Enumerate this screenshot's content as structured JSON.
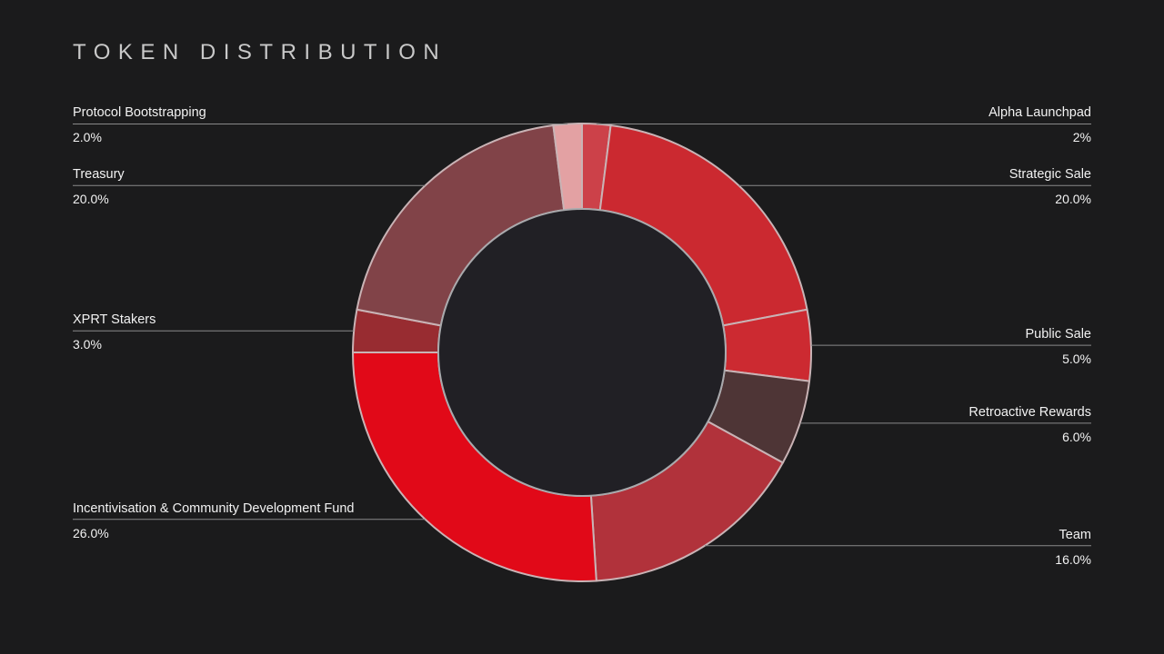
{
  "title": "TOKEN DISTRIBUTION",
  "chart_data": {
    "type": "pie",
    "title": "TOKEN DISTRIBUTION",
    "series": [
      {
        "name": "Alpha Launchpad",
        "value": 2,
        "display": "2%",
        "color": "#cc4149",
        "side": "right"
      },
      {
        "name": "Strategic Sale",
        "value": 20,
        "display": "20.0%",
        "color": "#cb2930",
        "side": "right"
      },
      {
        "name": "Public Sale",
        "value": 5,
        "display": "5.0%",
        "color": "#cc2a31",
        "side": "right"
      },
      {
        "name": "Retroactive Rewards",
        "value": 6,
        "display": "6.0%",
        "color": "#4e3536",
        "side": "right"
      },
      {
        "name": "Team",
        "value": 16,
        "display": "16.0%",
        "color": "#b1323b",
        "side": "right"
      },
      {
        "name": "Incentivisation & Community Development Fund",
        "value": 26,
        "display": "26.0%",
        "color": "#e10918",
        "side": "left"
      },
      {
        "name": "XPRT Stakers",
        "value": 3,
        "display": "3.0%",
        "color": "#982c31",
        "side": "left"
      },
      {
        "name": "Treasury",
        "value": 20,
        "display": "20.0%",
        "color": "#814348",
        "side": "left"
      },
      {
        "name": "Protocol Bootstrapping",
        "value": 2,
        "display": "2.0%",
        "color": "#e3a1a3",
        "side": "left"
      }
    ]
  }
}
